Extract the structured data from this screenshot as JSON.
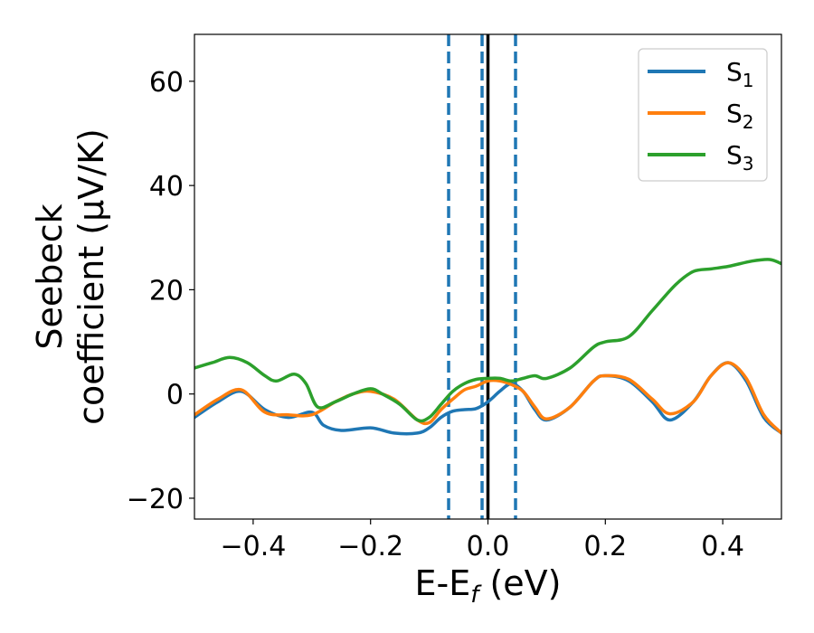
{
  "chart_data": {
    "type": "line",
    "xlabel": "E-E",
    "xlabel_sub": "f",
    "xlabel_unit": " (eV)",
    "ylabel_line1": "Seebeck",
    "ylabel_line2": "coefficient  (μV/K)",
    "xlim": [
      -0.5,
      0.5
    ],
    "ylim": [
      -24,
      69
    ],
    "xticks": [
      -0.4,
      -0.2,
      0.0,
      0.2,
      0.4
    ],
    "xtick_labels": [
      "−0.4",
      "−0.2",
      "0.0",
      "0.2",
      "0.4"
    ],
    "yticks": [
      -20,
      0,
      20,
      40,
      60
    ],
    "ytick_labels": [
      "−20",
      "0",
      "20",
      "40",
      "60"
    ],
    "grid": false,
    "legend_position": "top-right",
    "vlines": [
      {
        "x": -0.067,
        "style": "dashed",
        "color": "#1f77b4"
      },
      {
        "x": -0.01,
        "style": "dashed",
        "color": "#1f77b4"
      },
      {
        "x": 0.047,
        "style": "dashed",
        "color": "#1f77b4"
      },
      {
        "x": 0.0,
        "style": "solid",
        "color": "#000000"
      }
    ],
    "series": [
      {
        "name": "S",
        "sub": "1",
        "color": "#1f77b4",
        "x": [
          -0.5,
          -0.46,
          -0.42,
          -0.38,
          -0.34,
          -0.3,
          -0.28,
          -0.25,
          -0.2,
          -0.16,
          -0.12,
          -0.1,
          -0.08,
          -0.06,
          -0.04,
          -0.02,
          0.0,
          0.02,
          0.04,
          0.06,
          0.08,
          0.1,
          0.14,
          0.18,
          0.2,
          0.24,
          0.28,
          0.31,
          0.35,
          0.38,
          0.41,
          0.44,
          0.47,
          0.5
        ],
        "y": [
          -4.5,
          -1.5,
          0.5,
          -3.0,
          -4.5,
          -3.5,
          -6.0,
          -7.0,
          -6.5,
          -7.5,
          -7.5,
          -6.5,
          -4.5,
          -3.3,
          -3.0,
          -2.8,
          -1.5,
          0.5,
          2.0,
          0.5,
          -3.0,
          -5.0,
          -2.5,
          2.5,
          3.5,
          2.5,
          -1.5,
          -5.0,
          -1.5,
          3.5,
          6.0,
          2.5,
          -4.5,
          -7.5
        ]
      },
      {
        "name": "S",
        "sub": "2",
        "color": "#ff7f0e",
        "x": [
          -0.5,
          -0.46,
          -0.42,
          -0.38,
          -0.34,
          -0.3,
          -0.26,
          -0.23,
          -0.2,
          -0.16,
          -0.12,
          -0.1,
          -0.08,
          -0.06,
          -0.04,
          -0.02,
          0.0,
          0.02,
          0.04,
          0.06,
          0.08,
          0.1,
          0.14,
          0.18,
          0.2,
          0.24,
          0.28,
          0.31,
          0.35,
          0.38,
          0.41,
          0.44,
          0.47,
          0.5
        ],
        "y": [
          -4.0,
          -1.0,
          0.8,
          -3.5,
          -4.0,
          -4.0,
          -1.5,
          0.0,
          0.5,
          -1.0,
          -5.0,
          -5.5,
          -3.0,
          -1.0,
          0.8,
          1.5,
          2.5,
          2.5,
          1.8,
          0.5,
          -2.5,
          -4.8,
          -2.5,
          2.5,
          3.5,
          2.8,
          -1.0,
          -3.8,
          -1.5,
          3.5,
          6.0,
          3.0,
          -4.0,
          -7.5
        ]
      },
      {
        "name": "S",
        "sub": "3",
        "color": "#2ca02c",
        "x": [
          -0.5,
          -0.47,
          -0.44,
          -0.41,
          -0.38,
          -0.36,
          -0.33,
          -0.31,
          -0.29,
          -0.26,
          -0.23,
          -0.2,
          -0.18,
          -0.15,
          -0.12,
          -0.1,
          -0.08,
          -0.06,
          -0.04,
          -0.02,
          0.0,
          0.02,
          0.04,
          0.06,
          0.08,
          0.1,
          0.14,
          0.18,
          0.2,
          0.24,
          0.28,
          0.32,
          0.35,
          0.38,
          0.41,
          0.45,
          0.48,
          0.5
        ],
        "y": [
          5.0,
          6.0,
          7.0,
          6.0,
          3.5,
          2.5,
          3.8,
          2.0,
          -2.5,
          -1.5,
          0.0,
          1.0,
          0.0,
          -2.0,
          -5.0,
          -4.5,
          -2.0,
          0.5,
          2.0,
          2.8,
          3.0,
          3.0,
          2.5,
          3.0,
          3.5,
          3.0,
          5.0,
          9.0,
          10.0,
          11.0,
          16.0,
          21.0,
          23.5,
          24.0,
          24.5,
          25.5,
          25.8,
          25.0
        ]
      }
    ]
  }
}
